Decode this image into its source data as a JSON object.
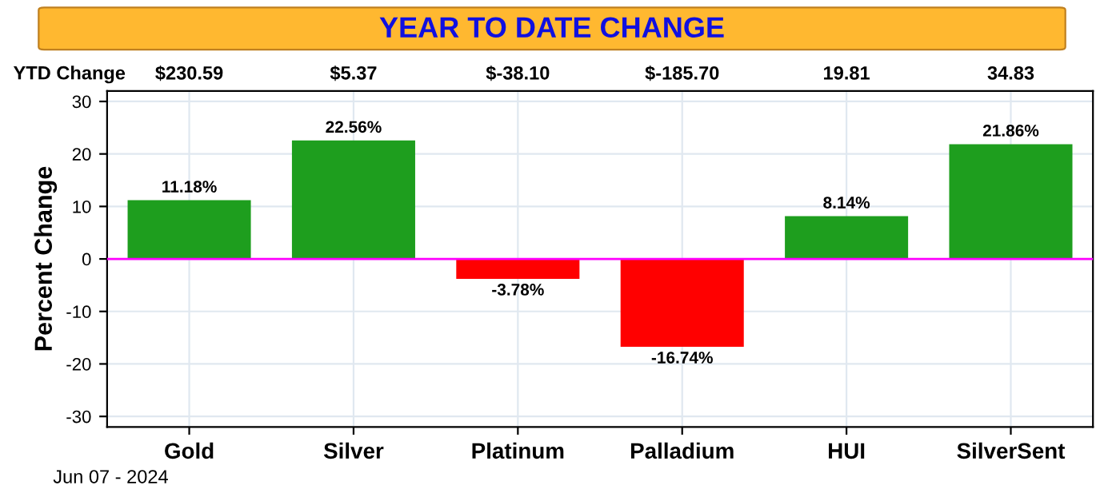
{
  "chart_data": {
    "type": "bar",
    "title": "YEAR TO DATE CHANGE",
    "ylabel": "Percent Change",
    "categories": [
      "Gold",
      "Silver",
      "Platinum",
      "Palladium",
      "HUI",
      "SilverSent"
    ],
    "values": [
      11.18,
      22.56,
      -3.78,
      -16.74,
      8.14,
      21.86
    ],
    "colors": [
      "#1e9e1e",
      "#1e9e1e",
      "#ff0000",
      "#ff0000",
      "#1e9e1e",
      "#1e9e1e"
    ],
    "value_labels": [
      "11.18%",
      "22.56%",
      "-3.78%",
      "-16.74%",
      "8.14%",
      "21.86%"
    ],
    "ylim": [
      -32,
      32
    ],
    "yticks": [
      -30,
      -20,
      -10,
      0,
      10,
      20,
      30
    ],
    "grid": true,
    "ref_lines": [
      {
        "axis": "y",
        "value": 0,
        "color": "#ff00ff"
      }
    ],
    "annotations": [
      "YTD Change",
      "$230.59",
      "$5.37",
      "$-38.10",
      "$-185.70",
      "19.81",
      "34.83",
      "Jun 07 - 2024"
    ]
  }
}
